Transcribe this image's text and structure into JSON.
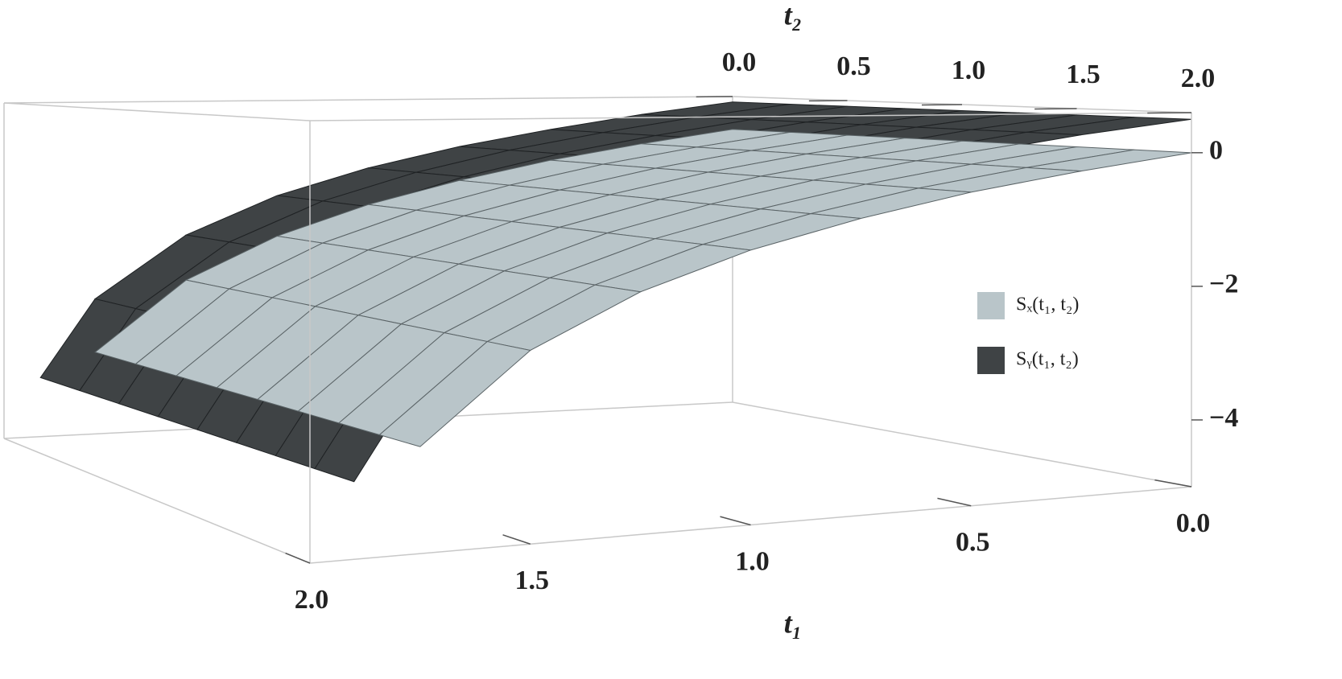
{
  "chart_data": {
    "type": "surface3d",
    "x_label": "t₁",
    "y_label": "t₂",
    "x": [
      0,
      0.25,
      0.5,
      0.75,
      1,
      1.25,
      1.5,
      1.75,
      1.9
    ],
    "xlim": [
      0,
      2
    ],
    "ylim": [
      0,
      2
    ],
    "zlim": [
      -5,
      0.6
    ],
    "xticks": [
      {
        "value": 0,
        "label": "0.0"
      },
      {
        "value": 0.5,
        "label": "0.5"
      },
      {
        "value": 1,
        "label": "1.0"
      },
      {
        "value": 1.5,
        "label": "1.5"
      },
      {
        "value": 2,
        "label": "2.0"
      }
    ],
    "yticks": [
      {
        "value": 0,
        "label": "0.0"
      },
      {
        "value": 0.5,
        "label": "0.5"
      },
      {
        "value": 1,
        "label": "1.0"
      },
      {
        "value": 1.5,
        "label": "1.5"
      },
      {
        "value": 2,
        "label": "2.0"
      }
    ],
    "zticks": [
      {
        "value": -4,
        "label": "−4"
      },
      {
        "value": -2,
        "label": "−2"
      },
      0
    ],
    "series": [
      {
        "name": "Sᵧ(t₁, t₂)",
        "color": "#3f4345",
        "values": [
          0.5,
          0.29,
          0.04,
          -0.24,
          -0.59,
          -1.04,
          -1.68,
          -2.72,
          -4.01
        ]
      },
      {
        "name": "Sₓ(t₁, t₂)",
        "color": "#b9c5c9",
        "values": [
          0,
          -0.24,
          -0.51,
          -0.84,
          -1.23,
          -1.74,
          -2.45,
          -3.62,
          null
        ]
      }
    ]
  }
}
